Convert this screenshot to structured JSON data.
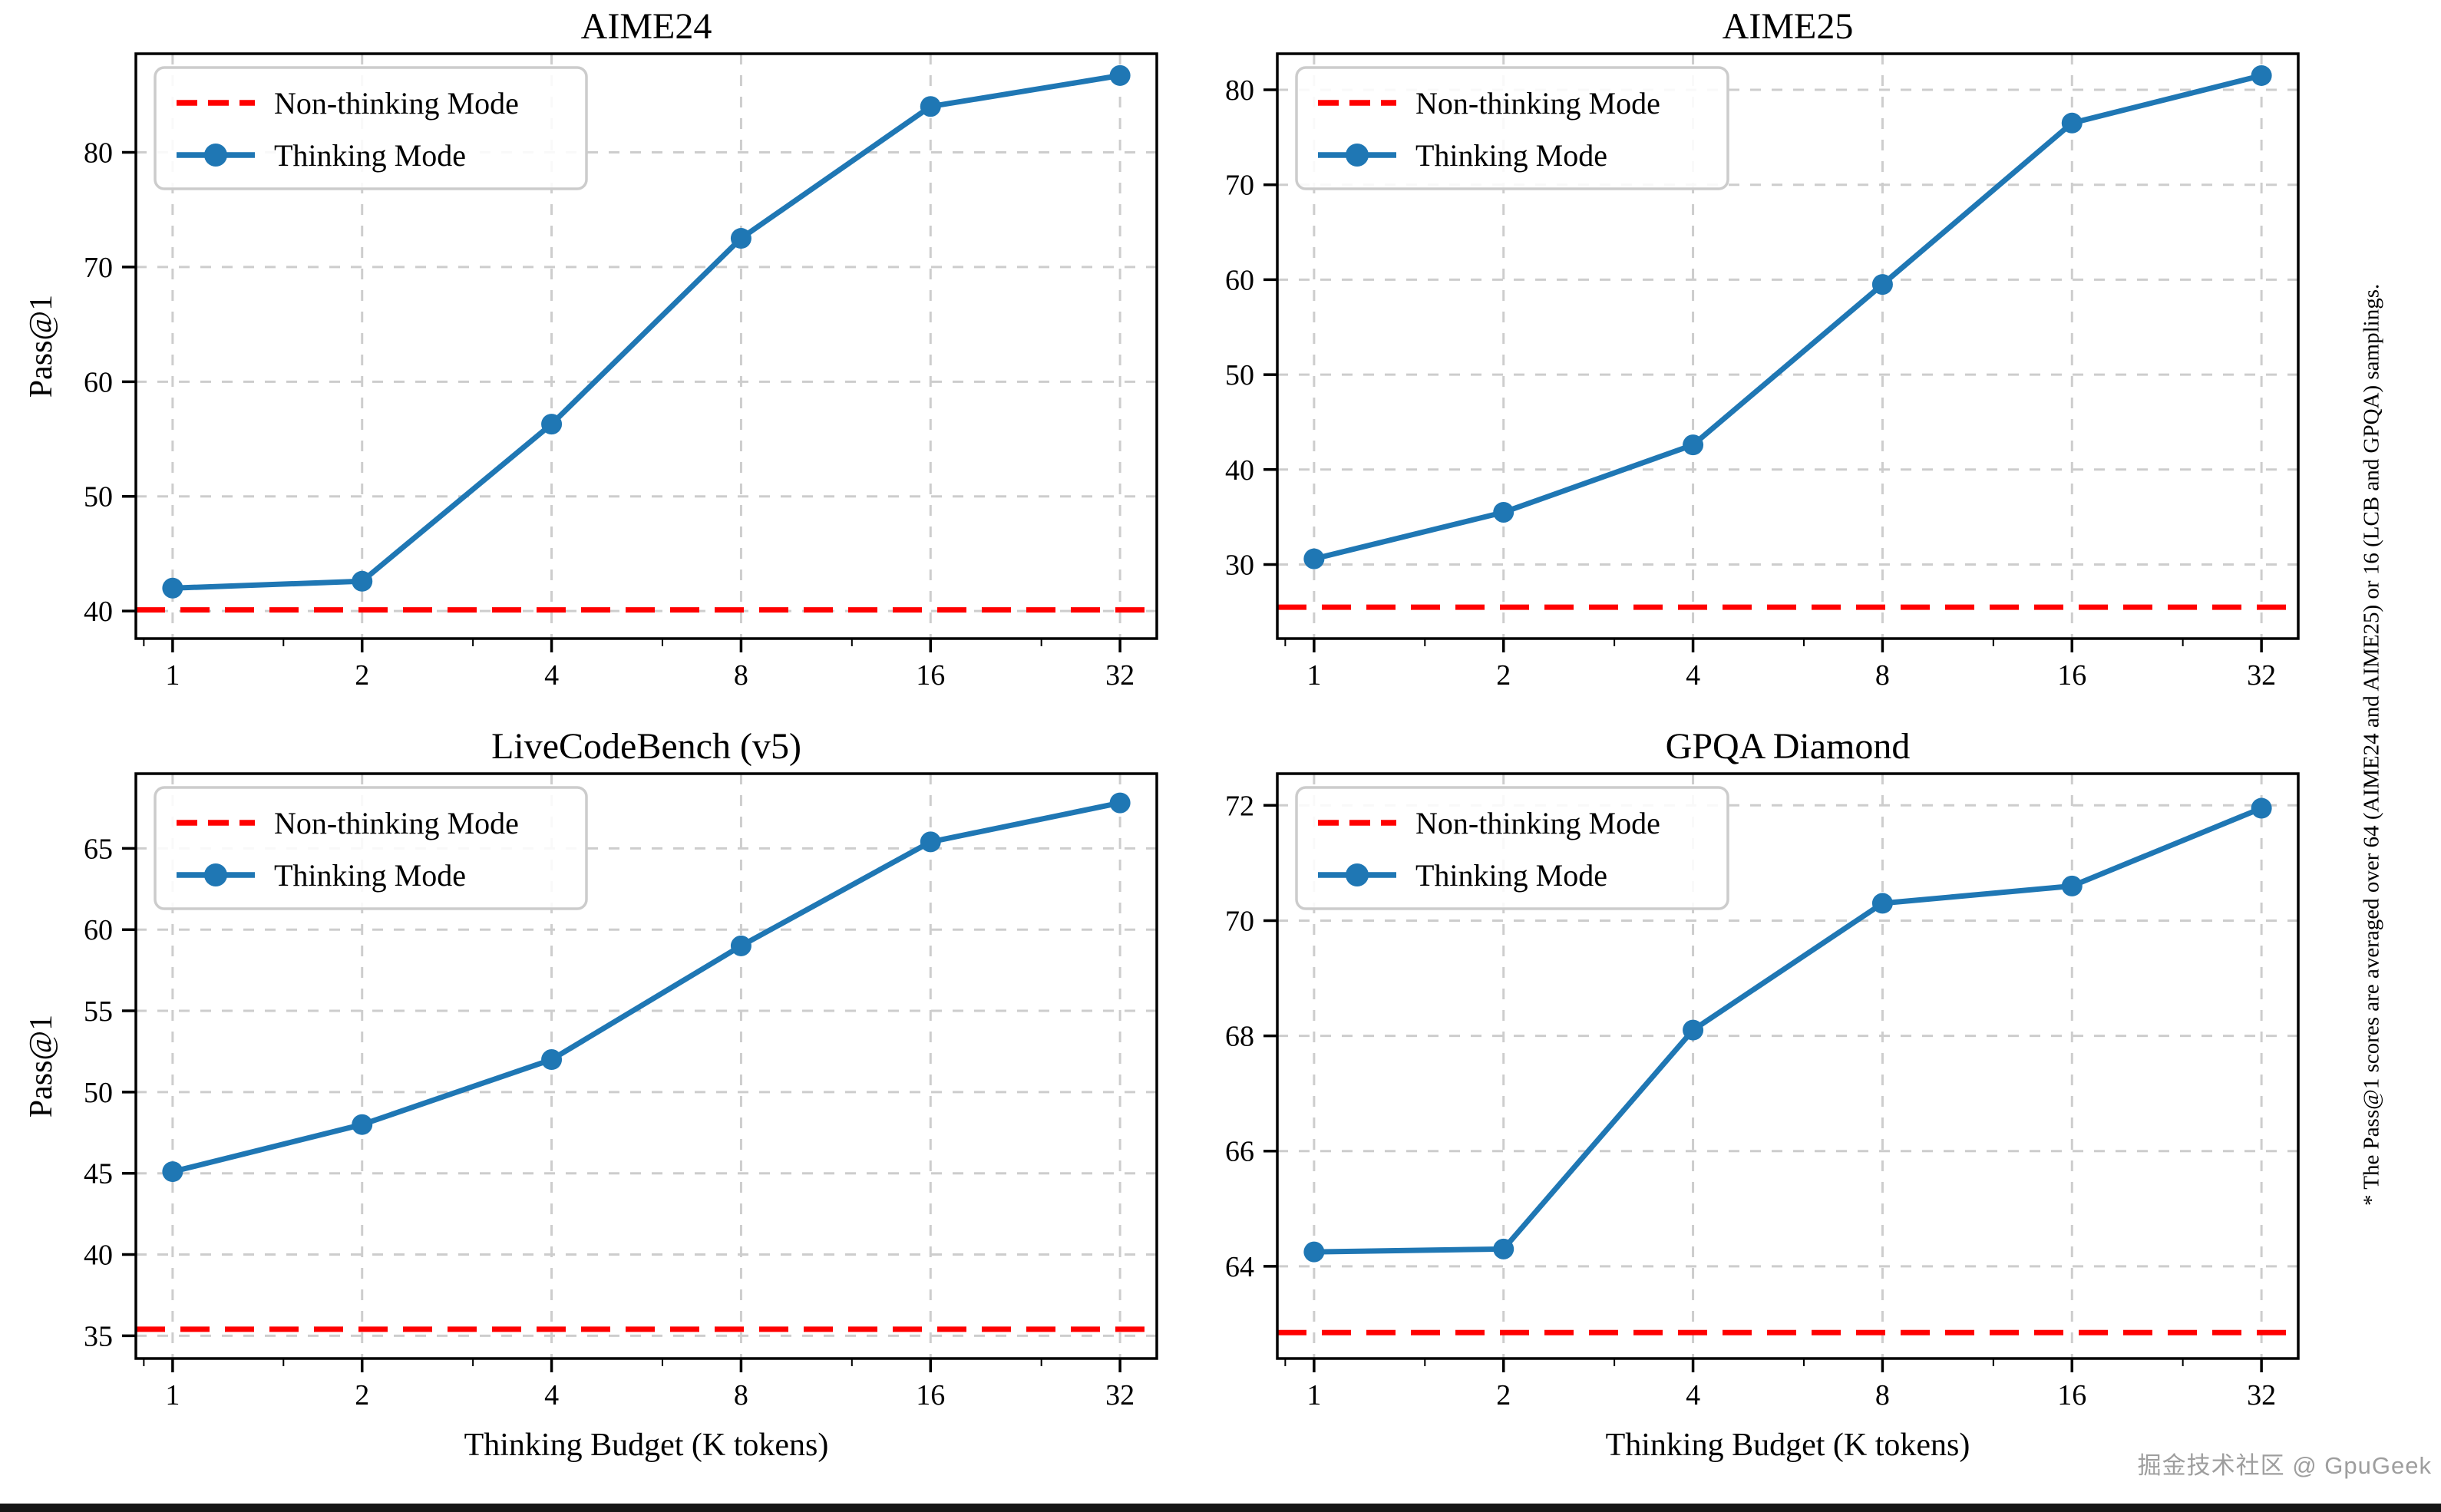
{
  "figure": {
    "watermark": "掘金技术社区 @ GpuGeek",
    "side_note": "* The Pass@1 scores are averaged over 64 (AIME24 and AIME25) or 16 (LCB and GPQA) samplings.",
    "legend": {
      "non_thinking_label": "Non-thinking Mode",
      "thinking_label": "Thinking Mode"
    },
    "x_axis_label": "Thinking Budget (K tokens)",
    "y_axis_label": "Pass@1",
    "colors": {
      "thinking_line": "#1f77b4",
      "non_thinking_line": "#ff0000",
      "grid": "#cdcdcd",
      "spine": "#000000",
      "legend_border": "#cccccc",
      "background": "#ffffff"
    }
  },
  "chart_data": [
    {
      "type": "line",
      "title": "AIME24",
      "xscale": "log2",
      "categories": [
        1,
        2,
        4,
        8,
        16,
        32
      ],
      "series": [
        {
          "name": "Thinking Mode",
          "style": "solid-with-markers",
          "values": [
            42.0,
            42.6,
            56.3,
            72.5,
            84.0,
            86.7
          ]
        },
        {
          "name": "Non-thinking Mode",
          "style": "dashed-horizontal",
          "value": 40.1
        }
      ],
      "xlabel": "",
      "ylabel": "Pass@1",
      "yticks": [
        40,
        50,
        60,
        70,
        80
      ],
      "ylim": [
        37.6,
        88.6
      ],
      "grid": true,
      "legend_position": "upper left"
    },
    {
      "type": "line",
      "title": "AIME25",
      "xscale": "log2",
      "categories": [
        1,
        2,
        4,
        8,
        16,
        32
      ],
      "series": [
        {
          "name": "Thinking Mode",
          "style": "solid-with-markers",
          "values": [
            30.6,
            35.5,
            42.6,
            59.5,
            76.5,
            81.5
          ]
        },
        {
          "name": "Non-thinking Mode",
          "style": "dashed-horizontal",
          "value": 25.5
        }
      ],
      "xlabel": "",
      "ylabel": "",
      "yticks": [
        30,
        40,
        50,
        60,
        70,
        80
      ],
      "ylim": [
        22.2,
        83.8
      ],
      "grid": true,
      "legend_position": "upper left"
    },
    {
      "type": "line",
      "title": "LiveCodeBench (v5)",
      "xscale": "log2",
      "categories": [
        1,
        2,
        4,
        8,
        16,
        32
      ],
      "series": [
        {
          "name": "Thinking Mode",
          "style": "solid-with-markers",
          "values": [
            45.1,
            48.0,
            52.0,
            59.0,
            65.4,
            67.8
          ]
        },
        {
          "name": "Non-thinking Mode",
          "style": "dashed-horizontal",
          "value": 35.4
        }
      ],
      "xlabel": "Thinking Budget (K tokens)",
      "ylabel": "Pass@1",
      "yticks": [
        35,
        40,
        45,
        50,
        55,
        60,
        65
      ],
      "ylim": [
        33.6,
        69.6
      ],
      "grid": true,
      "legend_position": "upper left"
    },
    {
      "type": "line",
      "title": "GPQA Diamond",
      "xscale": "log2",
      "categories": [
        1,
        2,
        4,
        8,
        16,
        32
      ],
      "series": [
        {
          "name": "Thinking Mode",
          "style": "solid-with-markers",
          "values": [
            64.25,
            64.3,
            68.1,
            70.3,
            70.6,
            71.95
          ]
        },
        {
          "name": "Non-thinking Mode",
          "style": "dashed-horizontal",
          "value": 62.85
        }
      ],
      "xlabel": "Thinking Budget (K tokens)",
      "ylabel": "",
      "yticks": [
        64,
        66,
        68,
        70,
        72
      ],
      "ylim": [
        62.4,
        72.55
      ],
      "grid": true,
      "legend_position": "upper left"
    }
  ]
}
